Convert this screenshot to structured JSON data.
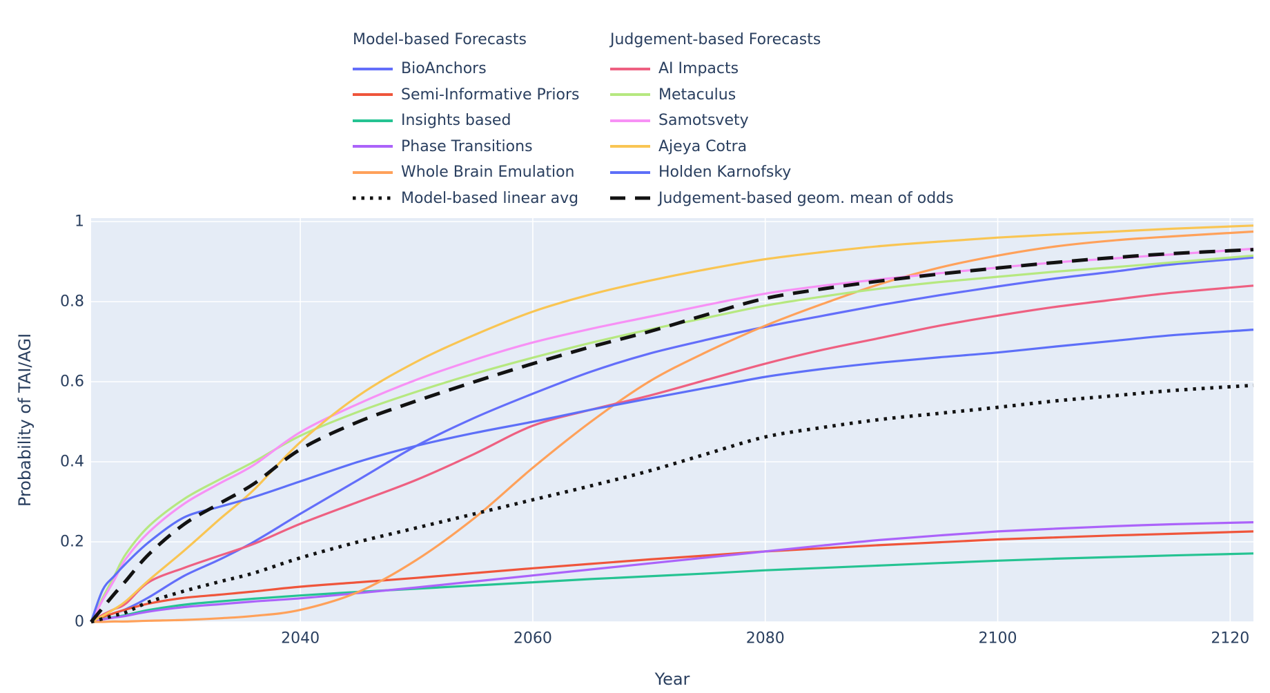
{
  "figure": {
    "font_color": "#2a3f5f",
    "plot_bg": "#E5ECF6",
    "grid_color": "#ffffff",
    "black_line_color": "#121212"
  },
  "legend": {
    "groups": [
      {
        "title": "Model-based Forecasts",
        "items": [
          {
            "label": "BioAnchors",
            "color": "#636EFA",
            "dash": "solid"
          },
          {
            "label": "Semi-Informative Priors",
            "color": "#EF553B",
            "dash": "solid"
          },
          {
            "label": "Insights based",
            "color": "#25C392",
            "dash": "solid"
          },
          {
            "label": "Phase Transitions",
            "color": "#AB63FA",
            "dash": "solid"
          },
          {
            "label": "Whole Brain Emulation",
            "color": "#FFA15A",
            "dash": "solid"
          },
          {
            "label": "Model-based linear avg",
            "color": "#121212",
            "dash": "dot"
          }
        ]
      },
      {
        "title": "Judgement-based Forecasts",
        "items": [
          {
            "label": "AI Impacts",
            "color": "#EE6081",
            "dash": "solid"
          },
          {
            "label": "Metaculus",
            "color": "#B6E880",
            "dash": "solid"
          },
          {
            "label": "Samotsvety",
            "color": "#F791F5",
            "dash": "solid"
          },
          {
            "label": "Ajeya Cotra",
            "color": "#F9C553",
            "dash": "solid"
          },
          {
            "label": "Holden Karnofsky",
            "color": "#5D6FF8",
            "dash": "solid"
          },
          {
            "label": "Judgement-based geom. mean of odds",
            "color": "#121212",
            "dash": "dash"
          }
        ]
      }
    ]
  },
  "chart_data": {
    "type": "line",
    "title": "",
    "xlabel": "Year",
    "ylabel": "Probability of TAI/AGI",
    "xlim": [
      2022,
      2122
    ],
    "ylim": [
      0,
      1
    ],
    "grid": true,
    "legend_position": "top-center",
    "x_ticks": [
      2040,
      2060,
      2080,
      2100,
      2120
    ],
    "x_tick_labels": [
      "2040",
      "2060",
      "2080",
      "2100",
      "2120"
    ],
    "y_ticks": [
      0,
      0.2,
      0.4,
      0.6,
      0.8,
      1
    ],
    "y_tick_labels": [
      "0",
      "0.2",
      "0.4",
      "0.6",
      "0.8",
      "1"
    ],
    "x": [
      2022,
      2023,
      2024,
      2025,
      2027,
      2030,
      2033,
      2036,
      2040,
      2045,
      2050,
      2055,
      2060,
      2065,
      2070,
      2075,
      2080,
      2085,
      2090,
      2095,
      2100,
      2105,
      2110,
      2115,
      2122
    ],
    "series": [
      {
        "name": "BioAnchors",
        "group": "Model-based Forecasts",
        "color": "#636EFA",
        "dash": "solid",
        "values": [
          0,
          0.012,
          0.022,
          0.032,
          0.062,
          0.115,
          0.155,
          0.2,
          0.27,
          0.355,
          0.44,
          0.51,
          0.57,
          0.625,
          0.67,
          0.705,
          0.737,
          0.765,
          0.792,
          0.816,
          0.838,
          0.858,
          0.875,
          0.893,
          0.91
        ]
      },
      {
        "name": "Semi-Informative Priors",
        "group": "Model-based Forecasts",
        "color": "#EF553B",
        "dash": "solid",
        "values": [
          0,
          0.012,
          0.022,
          0.031,
          0.046,
          0.06,
          0.068,
          0.076,
          0.088,
          0.099,
          0.11,
          0.122,
          0.134,
          0.145,
          0.156,
          0.166,
          0.176,
          0.184,
          0.192,
          0.199,
          0.206,
          0.211,
          0.216,
          0.22,
          0.226
        ]
      },
      {
        "name": "Insights based",
        "group": "Model-based Forecasts",
        "color": "#25C392",
        "dash": "solid",
        "values": [
          0,
          0.007,
          0.012,
          0.017,
          0.03,
          0.043,
          0.051,
          0.058,
          0.066,
          0.075,
          0.083,
          0.091,
          0.099,
          0.107,
          0.114,
          0.121,
          0.129,
          0.135,
          0.141,
          0.147,
          0.153,
          0.158,
          0.162,
          0.166,
          0.171
        ]
      },
      {
        "name": "Phase Transitions",
        "group": "Model-based Forecasts",
        "color": "#AB63FA",
        "dash": "solid",
        "values": [
          0,
          0.006,
          0.011,
          0.015,
          0.026,
          0.037,
          0.044,
          0.051,
          0.059,
          0.072,
          0.086,
          0.101,
          0.116,
          0.131,
          0.146,
          0.161,
          0.176,
          0.191,
          0.205,
          0.216,
          0.226,
          0.233,
          0.239,
          0.244,
          0.249
        ]
      },
      {
        "name": "Whole Brain Emulation",
        "group": "Model-based Forecasts",
        "color": "#FFA15A",
        "dash": "solid",
        "values": [
          0,
          0.0,
          0.001,
          0.001,
          0.003,
          0.005,
          0.009,
          0.015,
          0.03,
          0.075,
          0.155,
          0.26,
          0.385,
          0.5,
          0.6,
          0.675,
          0.74,
          0.795,
          0.845,
          0.885,
          0.915,
          0.938,
          0.953,
          0.963,
          0.975
        ]
      },
      {
        "name": "AI Impacts",
        "group": "Judgement-based Forecasts",
        "color": "#EE6081",
        "dash": "solid",
        "values": [
          0,
          0.018,
          0.032,
          0.046,
          0.1,
          0.135,
          0.165,
          0.195,
          0.245,
          0.3,
          0.355,
          0.42,
          0.49,
          0.53,
          0.565,
          0.605,
          0.645,
          0.68,
          0.71,
          0.74,
          0.765,
          0.787,
          0.805,
          0.822,
          0.84
        ]
      },
      {
        "name": "Metaculus",
        "group": "Judgement-based Forecasts",
        "color": "#B6E880",
        "dash": "solid",
        "values": [
          0,
          0.06,
          0.115,
          0.17,
          0.24,
          0.307,
          0.355,
          0.4,
          0.465,
          0.525,
          0.575,
          0.62,
          0.66,
          0.697,
          0.73,
          0.76,
          0.79,
          0.813,
          0.833,
          0.849,
          0.862,
          0.875,
          0.886,
          0.898,
          0.915
        ]
      },
      {
        "name": "Samotsvety",
        "group": "Judgement-based Forecasts",
        "color": "#F791F5",
        "dash": "solid",
        "values": [
          0,
          0.055,
          0.105,
          0.158,
          0.225,
          0.295,
          0.345,
          0.392,
          0.474,
          0.545,
          0.605,
          0.655,
          0.698,
          0.732,
          0.762,
          0.792,
          0.82,
          0.84,
          0.856,
          0.871,
          0.885,
          0.898,
          0.908,
          0.918,
          0.932
        ]
      },
      {
        "name": "Ajeya Cotra",
        "group": "Judgement-based Forecasts",
        "color": "#F9C553",
        "dash": "solid",
        "values": [
          0,
          0.015,
          0.032,
          0.052,
          0.105,
          0.178,
          0.255,
          0.33,
          0.449,
          0.565,
          0.65,
          0.717,
          0.775,
          0.818,
          0.852,
          0.881,
          0.906,
          0.924,
          0.939,
          0.95,
          0.96,
          0.968,
          0.975,
          0.982,
          0.99
        ]
      },
      {
        "name": "Holden Karnofsky",
        "group": "Judgement-based Forecasts",
        "color": "#5D6FF8",
        "dash": "solid",
        "values": [
          0,
          0.08,
          0.115,
          0.146,
          0.2,
          0.261,
          0.287,
          0.312,
          0.351,
          0.4,
          0.44,
          0.472,
          0.5,
          0.53,
          0.558,
          0.585,
          0.612,
          0.632,
          0.648,
          0.661,
          0.673,
          0.688,
          0.702,
          0.716,
          0.73
        ]
      },
      {
        "name": "Model-based linear avg",
        "group": "Model-based Forecasts",
        "color": "#121212",
        "dash": "dot",
        "values": [
          0,
          0.008,
          0.016,
          0.024,
          0.05,
          0.077,
          0.1,
          0.122,
          0.16,
          0.2,
          0.235,
          0.27,
          0.305,
          0.34,
          0.377,
          0.42,
          0.462,
          0.486,
          0.506,
          0.521,
          0.536,
          0.552,
          0.565,
          0.578,
          0.591
        ]
      },
      {
        "name": "Judgement-based geom. mean of odds",
        "group": "Judgement-based Forecasts",
        "color": "#121212",
        "dash": "dash",
        "values": [
          0,
          0.035,
          0.07,
          0.103,
          0.17,
          0.244,
          0.295,
          0.345,
          0.431,
          0.5,
          0.552,
          0.6,
          0.645,
          0.687,
          0.725,
          0.768,
          0.808,
          0.832,
          0.852,
          0.869,
          0.884,
          0.898,
          0.91,
          0.92,
          0.93
        ]
      }
    ]
  }
}
